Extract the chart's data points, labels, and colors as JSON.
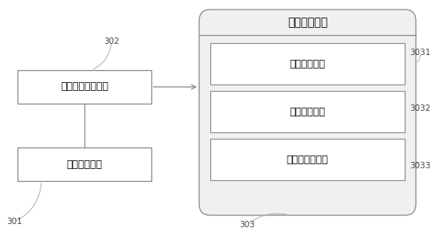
{
  "bg_color": "#ffffff",
  "edge_color": "#888888",
  "edge_color_light": "#aaaaaa",
  "outer_fill": "#f0f0f0",
  "inner_fill": "#ffffff",
  "label_301": "301",
  "label_302": "302",
  "label_303": "303",
  "label_3031": "3031",
  "label_3032": "3032",
  "label_3033": "3033",
  "text_kernel": "内核监视模块",
  "text_behavior": "行为序列维护模块",
  "text_logic": "逻辑判断模块",
  "text_pattern": "模式匹配模块",
  "text_data": "数据匹配模块",
  "text_hidden": "隐蔽性检测模块",
  "font_size_main": 9,
  "font_size_label": 7.5
}
